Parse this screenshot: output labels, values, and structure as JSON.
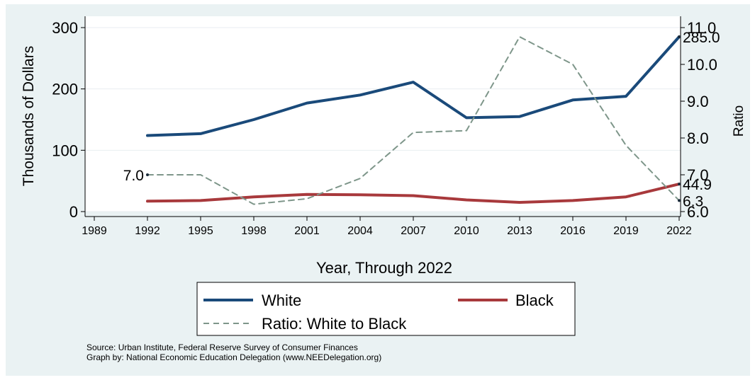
{
  "chart_data": {
    "type": "line",
    "x": [
      1992,
      1995,
      1998,
      2001,
      2004,
      2007,
      2010,
      2013,
      2016,
      2019,
      2022
    ],
    "x_ticks": [
      1989,
      1992,
      1995,
      1998,
      2001,
      2004,
      2007,
      2010,
      2013,
      2016,
      2019,
      2022
    ],
    "xlabel": "Year, Through 2022",
    "ylabel": "Thousands of Dollars",
    "y2label": "Ratio",
    "ylim": [
      0,
      300
    ],
    "y_ticks": [
      0,
      100,
      200,
      300
    ],
    "y2lim": [
      6.0,
      11.0
    ],
    "y2_ticks": [
      "6.0",
      "7.0",
      "8.0",
      "9.0",
      "10.0",
      "11.0"
    ],
    "grid": "horizontal",
    "legend_position": "bottom",
    "series": [
      {
        "name": "White",
        "axis": "left",
        "color": "#1a4a7a",
        "style": "solid",
        "values": [
          124,
          127,
          150,
          177,
          190,
          211,
          153,
          155,
          182,
          188,
          285.0
        ]
      },
      {
        "name": "Black",
        "axis": "left",
        "color": "#a8393c",
        "style": "solid",
        "values": [
          17,
          18,
          24,
          28,
          27.5,
          26,
          19,
          15,
          18,
          24,
          44.9
        ]
      },
      {
        "name": "Ratio: White to Black",
        "axis": "right",
        "color": "#7e968a",
        "style": "dashed",
        "values": [
          7.0,
          7.0,
          6.2,
          6.35,
          6.9,
          8.15,
          8.2,
          10.75,
          10.0,
          7.8,
          6.3
        ]
      }
    ],
    "annotations": [
      {
        "text": "7.0",
        "series": 2,
        "index": 0,
        "side": "left"
      },
      {
        "text": "285.0",
        "series": 0,
        "index": 10,
        "side": "right"
      },
      {
        "text": "44.9",
        "series": 1,
        "index": 10,
        "side": "right"
      },
      {
        "text": "6.3",
        "series": 2,
        "index": 10,
        "side": "right"
      }
    ],
    "source_lines": [
      "Source: Urban Institute, Federal Reserve Survey of Consumer Finances",
      "Graph by: National Economic Education Delegation (www.NEEDelegation.org)"
    ]
  }
}
